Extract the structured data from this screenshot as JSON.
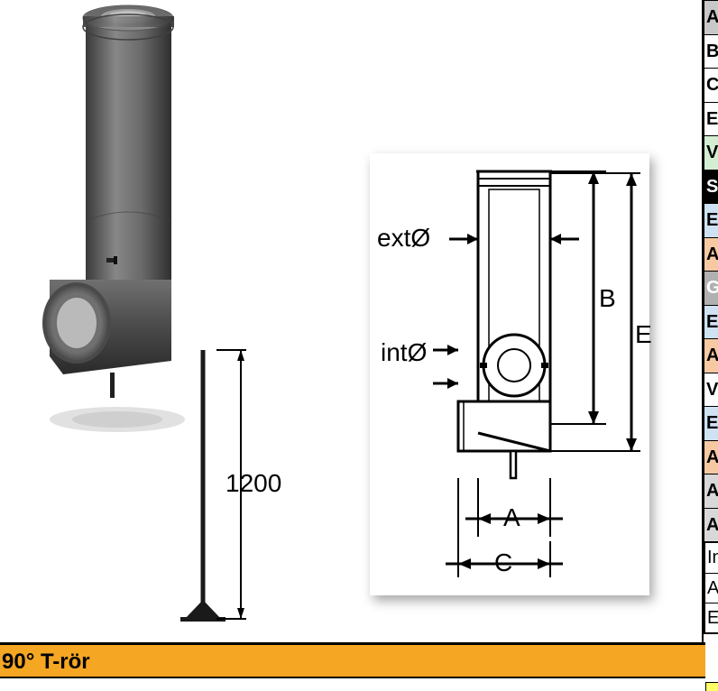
{
  "title_bar": "90° T-rör",
  "rod_height_label": "1200",
  "schematic": {
    "ext_label": "extØ",
    "int_label": "intØ",
    "dim_A": "A",
    "dim_B": "B",
    "dim_C": "C",
    "dim_E": "E"
  },
  "side_rows": [
    {
      "label": "A",
      "bg": "#c8c8c8",
      "fg": "#000000"
    },
    {
      "label": "B",
      "bg": "#ffffff",
      "fg": "#000000"
    },
    {
      "label": "C",
      "bg": "#ffffff",
      "fg": "#000000"
    },
    {
      "label": "E",
      "bg": "#ffffff",
      "fg": "#000000"
    },
    {
      "label": "V",
      "bg": "#d4eed4",
      "fg": "#000000"
    },
    {
      "label": "S",
      "bg": "#000000",
      "fg": "#ffffff"
    },
    {
      "label": "E",
      "bg": "#cfe2f3",
      "fg": "#000000"
    },
    {
      "label": "A",
      "bg": "#f6c9a3",
      "fg": "#000000"
    },
    {
      "label": "G",
      "bg": "#b0b0b0",
      "fg": "#ffffff"
    },
    {
      "label": "E",
      "bg": "#cfe2f3",
      "fg": "#000000"
    },
    {
      "label": "A",
      "bg": "#f6c9a3",
      "fg": "#000000"
    },
    {
      "label": "V",
      "bg": "#ffffff",
      "fg": "#000000",
      "bold": true
    },
    {
      "label": "E",
      "bg": "#cfe2f3",
      "fg": "#000000"
    },
    {
      "label": "A",
      "bg": "#f6c9a3",
      "fg": "#000000"
    },
    {
      "label": "A",
      "bg": "#d8d8d8",
      "fg": "#000000"
    },
    {
      "label": "A",
      "bg": "#d8d8d8",
      "fg": "#000000"
    }
  ],
  "side_box_rows": [
    {
      "label": "In"
    },
    {
      "label": "A"
    },
    {
      "label": "E"
    }
  ],
  "colors": {
    "title_bg": "#f5a623",
    "pipe_body": "#5a5a5a",
    "pipe_light": "#8a8a8a",
    "pipe_dark": "#3a3a3a",
    "rod_color": "#1a1a1a"
  }
}
